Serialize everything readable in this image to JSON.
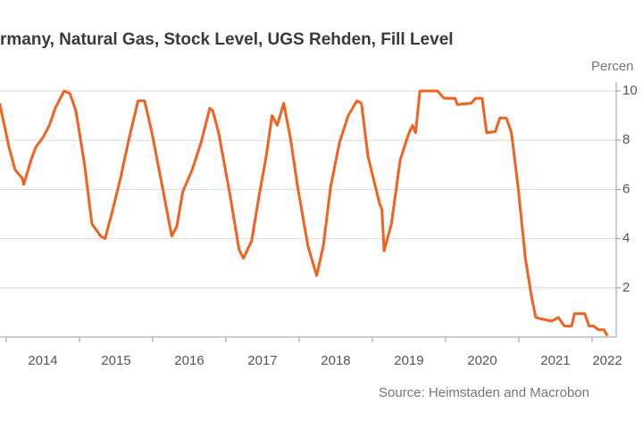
{
  "chart_data": {
    "type": "line",
    "title": "rmany, Natural Gas, Stock Level, UGS Rehden, Fill Level",
    "y_axis_label": "Percen",
    "source": "Source: Heimstaden and Macrobon",
    "xlim": [
      2013.915,
      2022.33
    ],
    "xticks": [
      2014,
      2015,
      2016,
      2017,
      2018,
      2019,
      2020,
      2021,
      2022
    ],
    "ylim": [
      0,
      100
    ],
    "yticks": [
      {
        "value": 20,
        "label": "2"
      },
      {
        "value": 40,
        "label": "4"
      },
      {
        "value": 60,
        "label": "6"
      },
      {
        "value": 80,
        "label": "8"
      },
      {
        "value": 100,
        "label": "10"
      }
    ],
    "grid": true,
    "series": [
      {
        "color": "#f2621f",
        "x": [
          2013.91,
          2014.04,
          2014.12,
          2014.22,
          2014.24,
          2014.34,
          2014.4,
          2014.5,
          2014.59,
          2014.67,
          2014.79,
          2014.87,
          2014.95,
          2015.07,
          2015.17,
          2015.29,
          2015.35,
          2015.44,
          2015.56,
          2015.68,
          2015.8,
          2015.89,
          2015.99,
          2016.11,
          2016.26,
          2016.33,
          2016.41,
          2016.54,
          2016.66,
          2016.78,
          2016.82,
          2016.9,
          2017.06,
          2017.18,
          2017.24,
          2017.35,
          2017.45,
          2017.55,
          2017.63,
          2017.7,
          2017.79,
          2017.88,
          2017.98,
          2018.12,
          2018.24,
          2018.33,
          2018.43,
          2018.55,
          2018.67,
          2018.79,
          2018.85,
          2018.94,
          2019.1,
          2019.13,
          2019.16,
          2019.26,
          2019.38,
          2019.5,
          2019.55,
          2019.59,
          2019.65,
          2019.89,
          2019.98,
          2020.13,
          2020.16,
          2020.35,
          2020.41,
          2020.5,
          2020.56,
          2020.68,
          2020.74,
          2020.83,
          2020.9,
          2020.99,
          2021.09,
          2021.17,
          2021.23,
          2021.29,
          2021.45,
          2021.54,
          2021.62,
          2021.72,
          2021.76,
          2021.9,
          2021.96,
          2022.02,
          2022.09,
          2022.16,
          2022.21
        ],
        "values": [
          95,
          77,
          68,
          64.5,
          62,
          72,
          77,
          81,
          86,
          93,
          100,
          99,
          92,
          70,
          46,
          41,
          40,
          50,
          64.5,
          81,
          96,
          96,
          83,
          64.5,
          41,
          45,
          59,
          68,
          79,
          93,
          92,
          83,
          57,
          35.5,
          32,
          39,
          57,
          73.5,
          90,
          86,
          95,
          81,
          61,
          37,
          25,
          37,
          61,
          79,
          90,
          96,
          95,
          73.5,
          54,
          52,
          35,
          46,
          72,
          83,
          86,
          83,
          100,
          100,
          97,
          97,
          94.5,
          95,
          97,
          97,
          83,
          83.5,
          89,
          89,
          83,
          61,
          32,
          17,
          8,
          7.5,
          6.5,
          8,
          4.5,
          4.5,
          9.5,
          9.5,
          4.5,
          4.5,
          3,
          3,
          0.5
        ]
      }
    ]
  }
}
